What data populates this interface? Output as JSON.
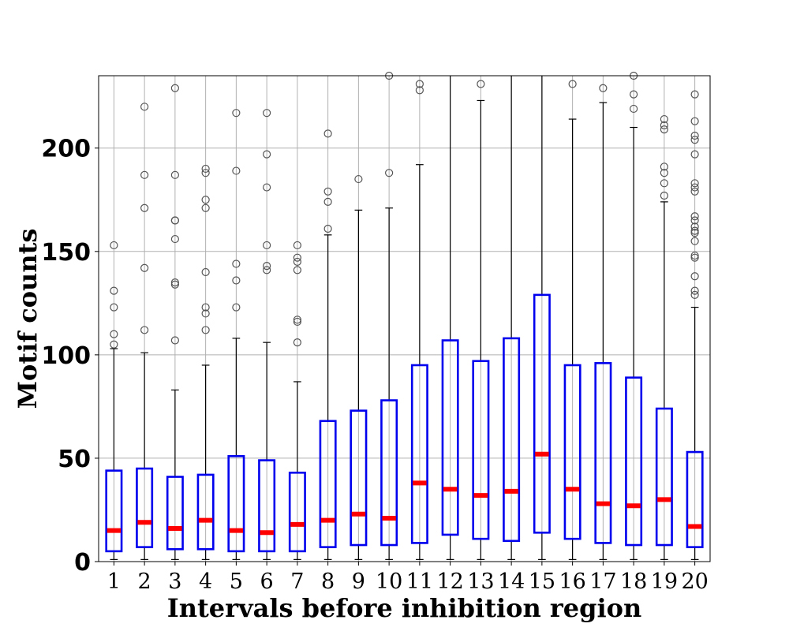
{
  "chart_data": {
    "type": "box",
    "title": "",
    "xlabel": "Intervals before inhibition region",
    "ylabel": "Motif counts",
    "ylim": [
      0,
      235
    ],
    "yticks": [
      0,
      50,
      100,
      150,
      200
    ],
    "grid": true,
    "colors": {
      "box": "#0000ee",
      "median": "#ff0000",
      "whisker": "#000000",
      "flier": "#555555",
      "grid": "#b0b0b0"
    },
    "categories": [
      "1",
      "2",
      "3",
      "4",
      "5",
      "6",
      "7",
      "8",
      "9",
      "10",
      "11",
      "12",
      "13",
      "14",
      "15",
      "16",
      "17",
      "18",
      "19",
      "20"
    ],
    "boxes": [
      {
        "category": "1",
        "min": 1,
        "q1": 5,
        "median": 15,
        "q3": 44,
        "max": 103,
        "fliers": [
          105,
          110,
          123,
          131,
          153
        ]
      },
      {
        "category": "2",
        "min": 1,
        "q1": 7,
        "median": 19,
        "q3": 45,
        "max": 101,
        "fliers": [
          112,
          142,
          171,
          187,
          220
        ]
      },
      {
        "category": "3",
        "min": 1,
        "q1": 6,
        "median": 16,
        "q3": 41,
        "max": 83,
        "fliers": [
          107,
          134,
          135,
          156,
          165,
          165,
          187,
          229
        ]
      },
      {
        "category": "4",
        "min": 1,
        "q1": 6,
        "median": 20,
        "q3": 42,
        "max": 95,
        "fliers": [
          112,
          120,
          123,
          140,
          171,
          175,
          188,
          190
        ]
      },
      {
        "category": "5",
        "min": 1,
        "q1": 5,
        "median": 15,
        "q3": 51,
        "max": 108,
        "fliers": [
          123,
          136,
          144,
          189,
          217
        ]
      },
      {
        "category": "6",
        "min": 1,
        "q1": 5,
        "median": 14,
        "q3": 49,
        "max": 106,
        "fliers": [
          141,
          143,
          153,
          181,
          197,
          217
        ]
      },
      {
        "category": "7",
        "min": 1,
        "q1": 5,
        "median": 18,
        "q3": 43,
        "max": 87,
        "fliers": [
          106,
          116,
          117,
          141,
          145,
          147,
          153
        ]
      },
      {
        "category": "8",
        "min": 1,
        "q1": 7,
        "median": 20,
        "q3": 68,
        "max": 158,
        "fliers": [
          161,
          174,
          179,
          207
        ]
      },
      {
        "category": "9",
        "min": 1,
        "q1": 8,
        "median": 23,
        "q3": 73,
        "max": 170,
        "fliers": [
          185
        ]
      },
      {
        "category": "10",
        "min": 1,
        "q1": 8,
        "median": 21,
        "q3": 78,
        "max": 171,
        "fliers": [
          188,
          235
        ]
      },
      {
        "category": "11",
        "min": 1,
        "q1": 9,
        "median": 38,
        "q3": 95,
        "max": 192,
        "fliers": [
          228,
          231
        ]
      },
      {
        "category": "12",
        "min": 1,
        "q1": 13,
        "median": 35,
        "q3": 107,
        "max": 235,
        "fliers": []
      },
      {
        "category": "13",
        "min": 1,
        "q1": 11,
        "median": 32,
        "q3": 97,
        "max": 223,
        "fliers": [
          231
        ]
      },
      {
        "category": "14",
        "min": 1,
        "q1": 10,
        "median": 34,
        "q3": 108,
        "max": 235,
        "fliers": []
      },
      {
        "category": "15",
        "min": 1,
        "q1": 14,
        "median": 52,
        "q3": 129,
        "max": 235,
        "fliers": []
      },
      {
        "category": "16",
        "min": 1,
        "q1": 11,
        "median": 35,
        "q3": 95,
        "max": 214,
        "fliers": [
          231
        ]
      },
      {
        "category": "17",
        "min": 1,
        "q1": 9,
        "median": 28,
        "q3": 96,
        "max": 222,
        "fliers": [
          229
        ]
      },
      {
        "category": "18",
        "min": 1,
        "q1": 8,
        "median": 27,
        "q3": 89,
        "max": 210,
        "fliers": [
          219,
          226,
          235
        ]
      },
      {
        "category": "19",
        "min": 1,
        "q1": 8,
        "median": 30,
        "q3": 74,
        "max": 174,
        "fliers": [
          177,
          183,
          188,
          191,
          209,
          211,
          214
        ]
      },
      {
        "category": "20",
        "min": 1,
        "q1": 7,
        "median": 17,
        "q3": 53,
        "max": 123,
        "fliers": [
          129,
          131,
          138,
          147,
          148,
          155,
          159,
          160,
          162,
          165,
          167,
          179,
          181,
          183,
          197,
          204,
          206,
          213,
          226
        ]
      }
    ]
  }
}
